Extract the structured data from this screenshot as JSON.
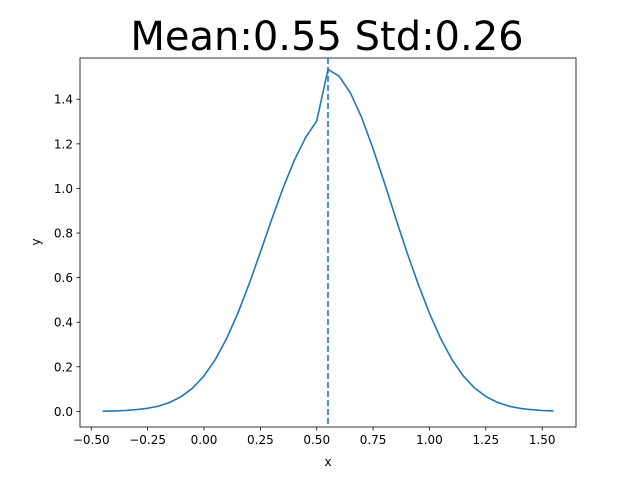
{
  "chart_data": {
    "type": "line",
    "title": "Mean:0.55 Std:0.26",
    "xlabel": "x",
    "ylabel": "y",
    "xlim": [
      -0.55,
      1.65
    ],
    "ylim": [
      -0.07,
      1.585
    ],
    "x_ticks": [
      -0.5,
      -0.25,
      0.0,
      0.25,
      0.5,
      0.75,
      1.0,
      1.25,
      1.5
    ],
    "x_tick_labels": [
      "−0.50",
      "−0.25",
      "0.00",
      "0.25",
      "0.50",
      "0.75",
      "1.00",
      "1.25",
      "1.50"
    ],
    "y_ticks": [
      0.0,
      0.2,
      0.4,
      0.6,
      0.8,
      1.0,
      1.2,
      1.4
    ],
    "y_tick_labels": [
      "0.0",
      "0.2",
      "0.4",
      "0.6",
      "0.8",
      "1.0",
      "1.2",
      "1.4"
    ],
    "grid": false,
    "mean_line": {
      "x": 0.55,
      "style": "dashed"
    },
    "series": [
      {
        "x": [
          -0.45,
          -0.4,
          -0.35,
          -0.3,
          -0.25,
          -0.2,
          -0.15,
          -0.1,
          -0.05,
          0.0,
          0.05,
          0.1,
          0.15,
          0.2,
          0.25,
          0.3,
          0.35,
          0.4,
          0.45,
          0.5,
          0.55,
          0.6,
          0.65,
          0.7,
          0.75,
          0.8,
          0.85,
          0.9,
          0.95,
          1.0,
          1.05,
          1.1,
          1.15,
          1.2,
          1.25,
          1.3,
          1.35,
          1.4,
          1.45,
          1.5,
          1.55
        ],
        "y": [
          0.001,
          0.002,
          0.004,
          0.008,
          0.014,
          0.024,
          0.041,
          0.067,
          0.105,
          0.159,
          0.232,
          0.326,
          0.44,
          0.571,
          0.714,
          0.86,
          1.0,
          1.125,
          1.227,
          1.303,
          1.534,
          1.503,
          1.427,
          1.316,
          1.178,
          1.026,
          0.868,
          0.714,
          0.571,
          0.44,
          0.326,
          0.232,
          0.159,
          0.105,
          0.067,
          0.041,
          0.024,
          0.014,
          0.008,
          0.004,
          0.002
        ],
        "color": "#1f77b4"
      }
    ],
    "colors": {
      "line": "#1f77b4",
      "axes": "#000000",
      "background": "#ffffff"
    }
  }
}
